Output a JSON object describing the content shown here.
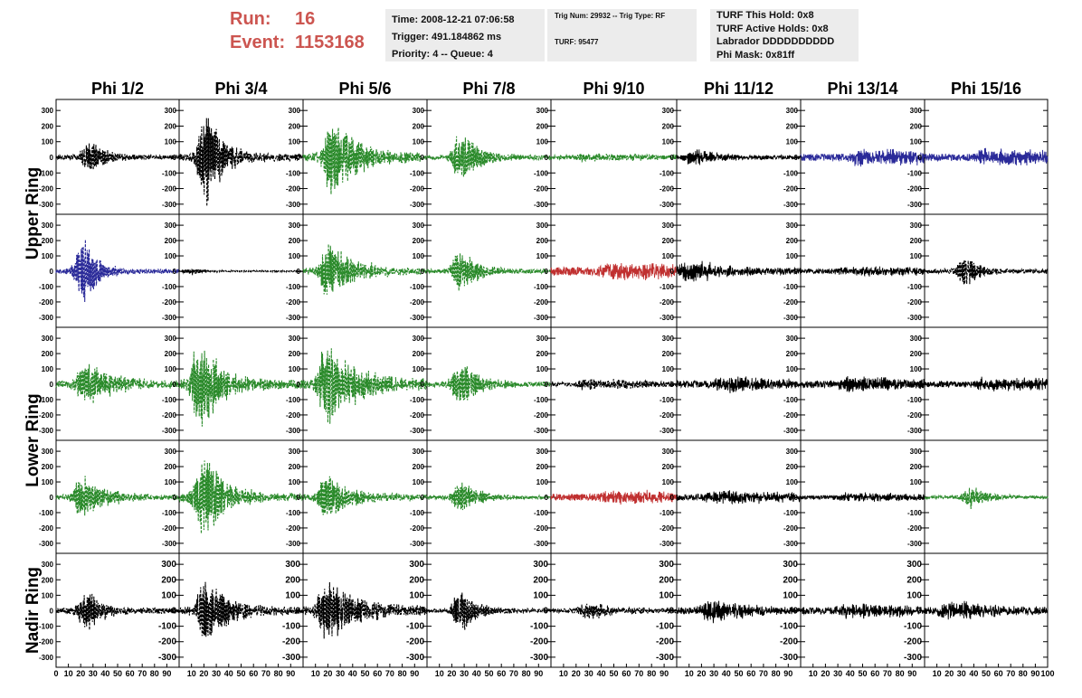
{
  "header": {
    "run_label": "Run:",
    "run_value": "16",
    "event_label": "Event:",
    "event_value": "1153168",
    "time": "Time: 2008-12-21 07:06:58",
    "trigger": "Trigger: 491.184862 ms",
    "priority": "Priority: 4 -- Queue: 4",
    "trig": "Trig Num: 29932 -- Trig Type: RF",
    "turf": "TURF: 95477",
    "turf_hold": "TURF This Hold: 0x8",
    "turf_active": "TURF Active Holds: 0x8",
    "labrador": "Labrador DDDDDDDDDD",
    "phi_mask": "Phi Mask: 0x81ff"
  },
  "colors": {
    "black": "#000000",
    "green": "#2a8a2a",
    "blue": "#2a2a99",
    "red": "#c03030",
    "run_text": "#cc5550",
    "panel_bg": "#ececec"
  },
  "chart_data": {
    "type": "line",
    "columns": [
      "Phi 1/2",
      "Phi 3/4",
      "Phi 5/6",
      "Phi 7/8",
      "Phi 9/10",
      "Phi 11/12",
      "Phi 13/14",
      "Phi 15/16"
    ],
    "rows": [
      "Upper Ring",
      "Upper Ring",
      "Lower Ring",
      "Lower Ring",
      "Nadir Ring"
    ],
    "ylim": [
      -330,
      330
    ],
    "yticks": [
      -300,
      -200,
      -100,
      0,
      100,
      200,
      300
    ],
    "xlim": [
      0,
      100
    ],
    "xtick_labels": [
      "0",
      "10",
      "20",
      "30",
      "40",
      "50",
      "60",
      "70",
      "80",
      "90",
      "100"
    ],
    "panels": [
      [
        {
          "color": "black",
          "dashed": true,
          "peak_x": 28,
          "amp": 130,
          "decay": 12,
          "noise": 14
        },
        {
          "color": "black",
          "dashed": true,
          "peak_x": 23,
          "amp": 330,
          "decay": 14,
          "noise": 22
        },
        {
          "color": "green",
          "dashed": true,
          "peak_x": 25,
          "amp": 260,
          "decay": 22,
          "noise": 24
        },
        {
          "color": "green",
          "dashed": true,
          "peak_x": 28,
          "amp": 190,
          "decay": 14,
          "noise": 14
        },
        {
          "color": "green",
          "dashed": true,
          "peak_x": 30,
          "amp": 20,
          "decay": 60,
          "noise": 14
        },
        {
          "color": "black",
          "dashed": false,
          "peak_x": 15,
          "amp": 55,
          "decay": 20,
          "noise": 13
        },
        {
          "color": "blue",
          "dashed": false,
          "peak_x": 50,
          "amp": 45,
          "decay": 200,
          "noise": 22
        },
        {
          "color": "blue",
          "dashed": false,
          "peak_x": 50,
          "amp": 45,
          "decay": 200,
          "noise": 22
        }
      ],
      [
        {
          "color": "blue",
          "dashed": true,
          "peak_x": 23,
          "amp": 240,
          "decay": 11,
          "noise": 14
        },
        {
          "color": "black",
          "dashed": true,
          "peak_x": 10,
          "amp": 25,
          "decay": 10,
          "noise": 4
        },
        {
          "color": "green",
          "dashed": true,
          "peak_x": 22,
          "amp": 190,
          "decay": 22,
          "noise": 18
        },
        {
          "color": "green",
          "dashed": true,
          "peak_x": 28,
          "amp": 150,
          "decay": 14,
          "noise": 14
        },
        {
          "color": "red",
          "dashed": false,
          "peak_x": 50,
          "amp": 45,
          "decay": 200,
          "noise": 28
        },
        {
          "color": "black",
          "dashed": false,
          "peak_x": 10,
          "amp": 80,
          "decay": 25,
          "noise": 22
        },
        {
          "color": "black",
          "dashed": false,
          "peak_x": 40,
          "amp": 25,
          "decay": 100,
          "noise": 16
        },
        {
          "color": "black",
          "dashed": true,
          "peak_x": 34,
          "amp": 120,
          "decay": 11,
          "noise": 14
        }
      ],
      [
        {
          "color": "green",
          "dashed": true,
          "peak_x": 25,
          "amp": 150,
          "decay": 25,
          "noise": 22
        },
        {
          "color": "green",
          "dashed": true,
          "peak_x": 18,
          "amp": 300,
          "decay": 18,
          "noise": 26
        },
        {
          "color": "green",
          "dashed": true,
          "peak_x": 20,
          "amp": 270,
          "decay": 28,
          "noise": 28
        },
        {
          "color": "green",
          "dashed": true,
          "peak_x": 28,
          "amp": 150,
          "decay": 16,
          "noise": 16
        },
        {
          "color": "black",
          "dashed": true,
          "peak_x": 30,
          "amp": 35,
          "decay": 60,
          "noise": 14
        },
        {
          "color": "black",
          "dashed": false,
          "peak_x": 40,
          "amp": 50,
          "decay": 60,
          "noise": 22
        },
        {
          "color": "black",
          "dashed": false,
          "peak_x": 40,
          "amp": 50,
          "decay": 60,
          "noise": 22
        },
        {
          "color": "black",
          "dashed": false,
          "peak_x": 50,
          "amp": 35,
          "decay": 200,
          "noise": 20
        }
      ],
      [
        {
          "color": "green",
          "dashed": true,
          "peak_x": 22,
          "amp": 140,
          "decay": 20,
          "noise": 16
        },
        {
          "color": "green",
          "dashed": true,
          "peak_x": 20,
          "amp": 300,
          "decay": 18,
          "noise": 22
        },
        {
          "color": "green",
          "dashed": true,
          "peak_x": 20,
          "amp": 150,
          "decay": 22,
          "noise": 18
        },
        {
          "color": "green",
          "dashed": true,
          "peak_x": 28,
          "amp": 120,
          "decay": 16,
          "noise": 10
        },
        {
          "color": "red",
          "dashed": false,
          "peak_x": 50,
          "amp": 35,
          "decay": 200,
          "noise": 22
        },
        {
          "color": "black",
          "dashed": false,
          "peak_x": 30,
          "amp": 35,
          "decay": 100,
          "noise": 20
        },
        {
          "color": "black",
          "dashed": false,
          "peak_x": 40,
          "amp": 25,
          "decay": 100,
          "noise": 14
        },
        {
          "color": "green",
          "dashed": true,
          "peak_x": 38,
          "amp": 80,
          "decay": 14,
          "noise": 10
        }
      ],
      [
        {
          "color": "black",
          "dashed": true,
          "peak_x": 25,
          "amp": 150,
          "decay": 14,
          "noise": 18
        },
        {
          "color": "black",
          "dashed": true,
          "peak_x": 22,
          "amp": 220,
          "decay": 20,
          "noise": 22
        },
        {
          "color": "black",
          "dashed": true,
          "peak_x": 20,
          "amp": 200,
          "decay": 28,
          "noise": 26
        },
        {
          "color": "black",
          "dashed": true,
          "peak_x": 28,
          "amp": 150,
          "decay": 14,
          "noise": 12
        },
        {
          "color": "black",
          "dashed": true,
          "peak_x": 30,
          "amp": 50,
          "decay": 30,
          "noise": 14
        },
        {
          "color": "black",
          "dashed": false,
          "peak_x": 28,
          "amp": 80,
          "decay": 30,
          "noise": 20
        },
        {
          "color": "black",
          "dashed": false,
          "peak_x": 40,
          "amp": 40,
          "decay": 100,
          "noise": 22
        },
        {
          "color": "black",
          "dashed": false,
          "peak_x": 20,
          "amp": 60,
          "decay": 40,
          "noise": 22
        }
      ]
    ]
  }
}
